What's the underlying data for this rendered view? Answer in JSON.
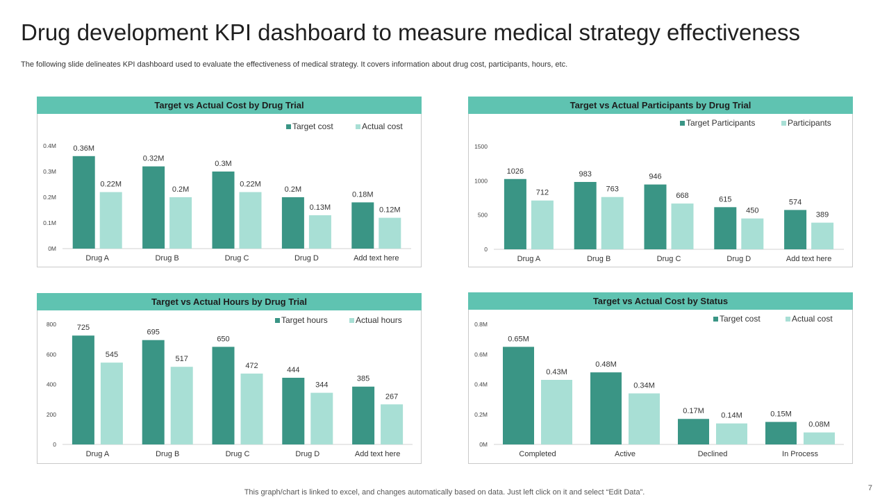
{
  "title": "Drug development KPI dashboard to measure medical strategy effectiveness",
  "subtitle": "The following slide delineates KPI dashboard used to evaluate the effectiveness of medical strategy. It covers information about drug cost, participants, hours, etc.",
  "footer": "This graph/chart is linked to excel,  and changes automatically based on data. Just left click on it and select “Edit Data”.",
  "page_number": "7",
  "colors": {
    "header": "#5fc3b1",
    "dark": "#3a9585",
    "light": "#a8dfd5"
  },
  "chart_data": [
    {
      "type": "bar",
      "title": "Target vs Actual Cost by Drug Trial",
      "categories": [
        "Drug A",
        "Drug B",
        "Drug C",
        "Drug D",
        "Add text here"
      ],
      "series": [
        {
          "name": "Target cost",
          "values": [
            0.36,
            0.32,
            0.3,
            0.2,
            0.18
          ],
          "labels": [
            "0.36M",
            "0.32M",
            "0.3M",
            "0.2M",
            "0.18M"
          ]
        },
        {
          "name": "Actual cost",
          "values": [
            0.22,
            0.2,
            0.22,
            0.13,
            0.12
          ],
          "labels": [
            "0.22M",
            "0.2M",
            "0.22M",
            "0.13M",
            "0.12M"
          ]
        }
      ],
      "ylim": [
        0,
        0.4
      ],
      "yticks": [
        0,
        0.1,
        0.2,
        0.3,
        0.4
      ],
      "ytick_labels": [
        "0M",
        "0.1M",
        "0.2M",
        "0.3M",
        "0.4M"
      ],
      "legend": "top-right"
    },
    {
      "type": "bar",
      "title": "Target vs Actual Participants by Drug Trial",
      "categories": [
        "Drug A",
        "Drug B",
        "Drug C",
        "Drug D",
        "Add text here"
      ],
      "series": [
        {
          "name": "Target Participants",
          "values": [
            1026,
            983,
            946,
            615,
            574
          ],
          "labels": [
            "1026",
            "983",
            "946",
            "615",
            "574"
          ]
        },
        {
          "name": "Participants",
          "values": [
            712,
            763,
            668,
            450,
            389
          ],
          "labels": [
            "712",
            "763",
            "668",
            "450",
            "389"
          ]
        }
      ],
      "ylim": [
        0,
        1500
      ],
      "yticks": [
        0,
        500,
        1000,
        1500
      ],
      "ytick_labels": [
        "0",
        "500",
        "1000",
        "1500"
      ],
      "legend": "top-right"
    },
    {
      "type": "bar",
      "title": "Target vs Actual Hours by Drug Trial",
      "categories": [
        "Drug A",
        "Drug B",
        "Drug C",
        "Drug D",
        "Add text here"
      ],
      "series": [
        {
          "name": "Target hours",
          "values": [
            725,
            695,
            650,
            444,
            385
          ],
          "labels": [
            "725",
            "695",
            "650",
            "444",
            "385"
          ]
        },
        {
          "name": "Actual hours",
          "values": [
            545,
            517,
            472,
            344,
            267
          ],
          "labels": [
            "545",
            "517",
            "472",
            "344",
            "267"
          ]
        }
      ],
      "ylim": [
        0,
        800
      ],
      "yticks": [
        0,
        200,
        400,
        600,
        800
      ],
      "ytick_labels": [
        "0",
        "200",
        "400",
        "600",
        "800"
      ],
      "legend": "top-right"
    },
    {
      "type": "bar",
      "title": "Target vs Actual Cost by Status",
      "categories": [
        "Completed",
        "Active",
        "Declined",
        "In Process"
      ],
      "series": [
        {
          "name": "Target cost",
          "values": [
            0.65,
            0.48,
            0.17,
            0.15
          ],
          "labels": [
            "0.65M",
            "0.48M",
            "0.17M",
            "0.15M"
          ]
        },
        {
          "name": "Actual cost",
          "values": [
            0.43,
            0.34,
            0.14,
            0.08
          ],
          "labels": [
            "0.43M",
            "0.34M",
            "0.14M",
            "0.08M"
          ]
        }
      ],
      "ylim": [
        0,
        0.8
      ],
      "yticks": [
        0,
        0.2,
        0.4,
        0.6,
        0.8
      ],
      "ytick_labels": [
        "0M",
        "0.2M",
        "0.4M",
        "0.6M",
        "0.8M"
      ],
      "legend": "top-right"
    }
  ]
}
